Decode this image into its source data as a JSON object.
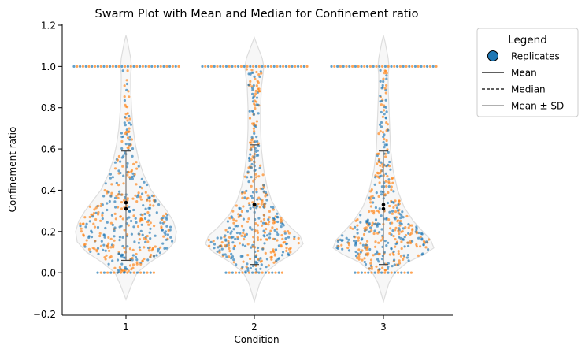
{
  "chart_data": {
    "type": "swarm",
    "title": "Swarm Plot with Mean and Median for Confinement ratio",
    "xlabel": "Condition",
    "ylabel": "Confinement ratio",
    "categories": [
      "1",
      "2",
      "3"
    ],
    "ylim": [
      -0.2,
      1.2
    ],
    "yticks": [
      "−0.2",
      "0.0",
      "0.2",
      "0.4",
      "0.6",
      "0.8",
      "1.0",
      "1.2"
    ],
    "grid": false,
    "legend": {
      "title": "Legend",
      "placement": "outside-right-top",
      "entries": [
        {
          "label": "Replicates",
          "style": "marker"
        },
        {
          "label": "Mean",
          "style": "solid"
        },
        {
          "label": "Median",
          "style": "dashed"
        },
        {
          "label": "Mean ± SD",
          "style": "gray"
        }
      ]
    },
    "colors": {
      "replicate_a": "#1f77b4",
      "replicate_b": "#ff7f0e",
      "violin_fill": "#f7f7f7",
      "violin_edge": "#dddddd",
      "sd_line": "#808080"
    },
    "summary": [
      {
        "condition": "1",
        "mean": 0.34,
        "median": 0.31,
        "sd_low": 0.06,
        "sd_high": 0.59
      },
      {
        "condition": "2",
        "mean": 0.33,
        "median": 0.33,
        "sd_low": 0.04,
        "sd_high": 0.62
      },
      {
        "condition": "3",
        "mean": 0.33,
        "median": 0.31,
        "sd_low": 0.04,
        "sd_high": 0.59
      }
    ],
    "violin_range": {
      "1": [
        -0.13,
        1.15
      ],
      "2": [
        -0.14,
        1.14
      ],
      "3": [
        -0.14,
        1.15
      ]
    }
  }
}
